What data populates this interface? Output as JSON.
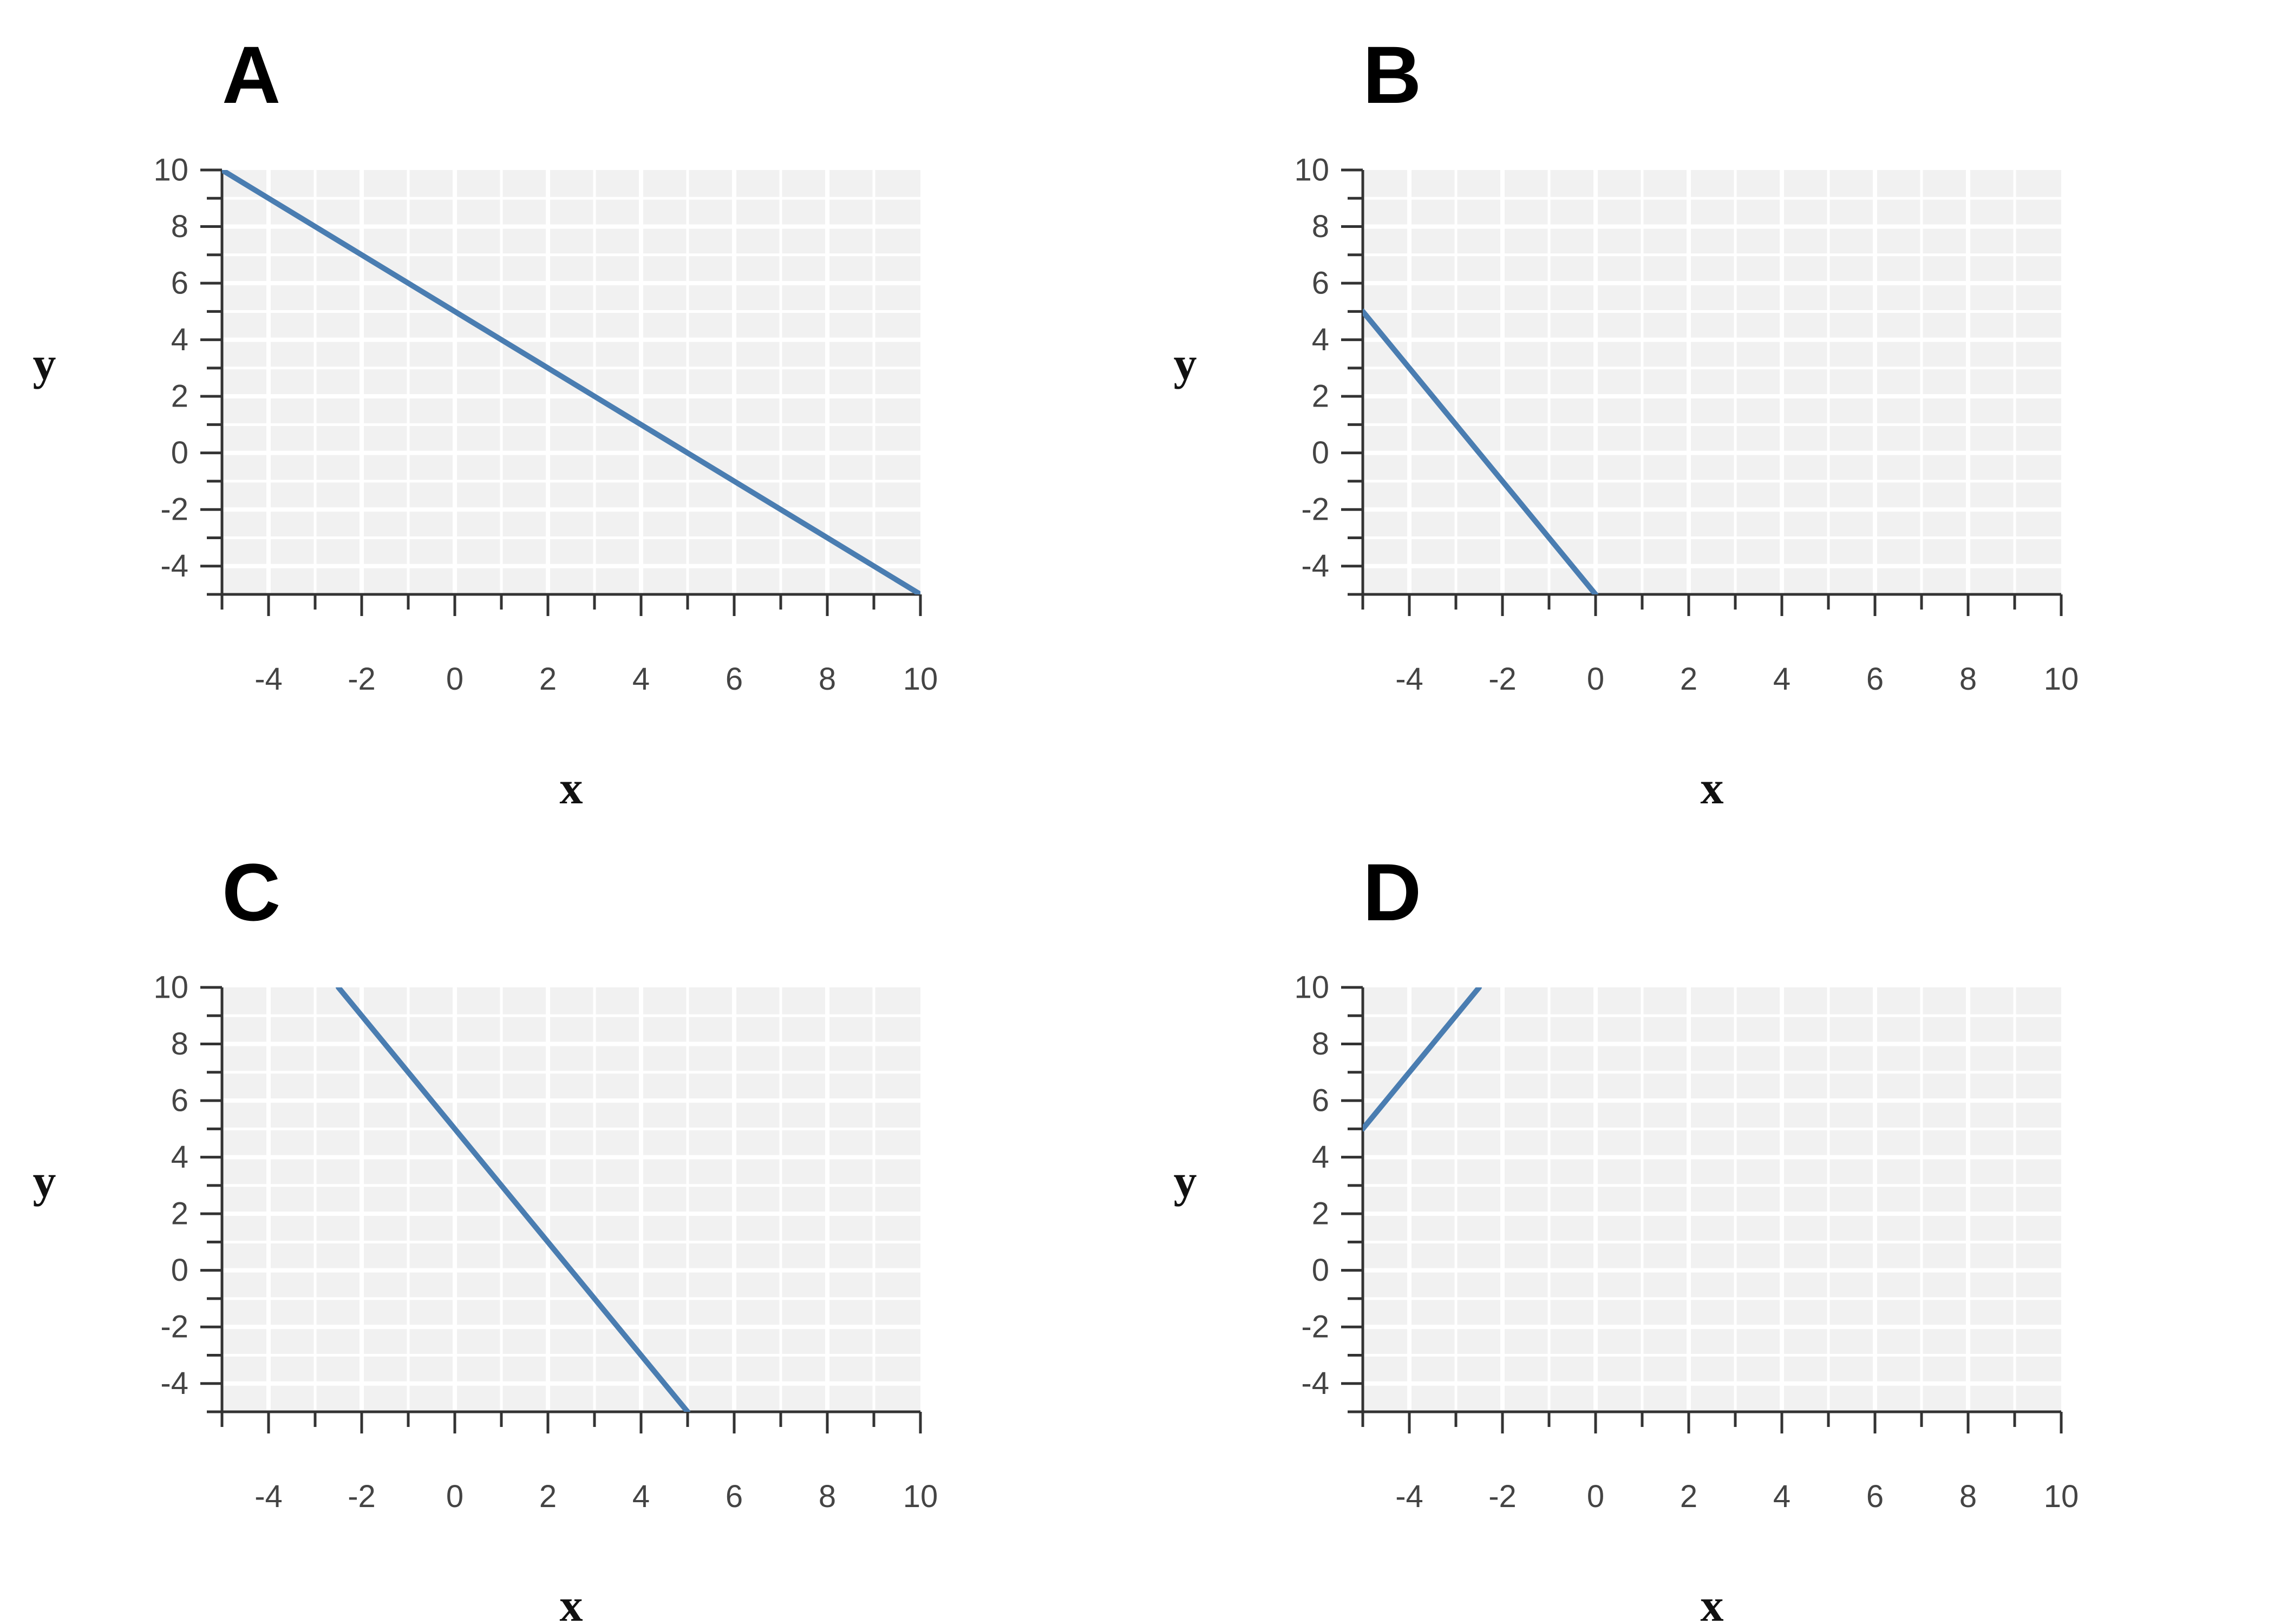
{
  "chart_data": [
    {
      "type": "line",
      "panel": "A",
      "xlabel": "x",
      "ylabel": "y",
      "xlim": [
        -5,
        10
      ],
      "ylim": [
        -5,
        10
      ],
      "x_ticks": [
        "-4",
        "-2",
        "0",
        "2",
        "4",
        "6",
        "8",
        "10"
      ],
      "y_ticks": [
        "10",
        "8",
        "6",
        "4",
        "2",
        "0",
        "-2",
        "-4"
      ],
      "grid": true,
      "series": [
        {
          "x": [
            -5,
            10
          ],
          "y": [
            10,
            -5
          ]
        }
      ]
    },
    {
      "type": "line",
      "panel": "B",
      "xlabel": "x",
      "ylabel": "y",
      "xlim": [
        -5,
        10
      ],
      "ylim": [
        -5,
        10
      ],
      "x_ticks": [
        "-4",
        "-2",
        "0",
        "2",
        "4",
        "6",
        "8",
        "10"
      ],
      "y_ticks": [
        "10",
        "8",
        "6",
        "4",
        "2",
        "0",
        "-2",
        "-4"
      ],
      "grid": true,
      "series": [
        {
          "x": [
            -5,
            0
          ],
          "y": [
            5,
            -5
          ]
        }
      ]
    },
    {
      "type": "line",
      "panel": "C",
      "xlabel": "x",
      "ylabel": "y",
      "xlim": [
        -5,
        10
      ],
      "ylim": [
        -5,
        10
      ],
      "x_ticks": [
        "-4",
        "-2",
        "0",
        "2",
        "4",
        "6",
        "8",
        "10"
      ],
      "y_ticks": [
        "10",
        "8",
        "6",
        "4",
        "2",
        "0",
        "-2",
        "-4"
      ],
      "grid": true,
      "series": [
        {
          "x": [
            -2.5,
            5
          ],
          "y": [
            10,
            -5
          ]
        }
      ]
    },
    {
      "type": "line",
      "panel": "D",
      "xlabel": "x",
      "ylabel": "y",
      "xlim": [
        -5,
        10
      ],
      "ylim": [
        -5,
        10
      ],
      "x_ticks": [
        "-4",
        "-2",
        "0",
        "2",
        "4",
        "6",
        "8",
        "10"
      ],
      "y_ticks": [
        "10",
        "8",
        "6",
        "4",
        "2",
        "0",
        "-2",
        "-4"
      ],
      "grid": true,
      "series": [
        {
          "x": [
            -5,
            -2.5
          ],
          "y": [
            5,
            10
          ]
        }
      ]
    }
  ],
  "colors": {
    "line": "#4a7db1",
    "plot_background": "#f1f1f1",
    "gridline": "#ffffff",
    "axis": "#333333"
  }
}
